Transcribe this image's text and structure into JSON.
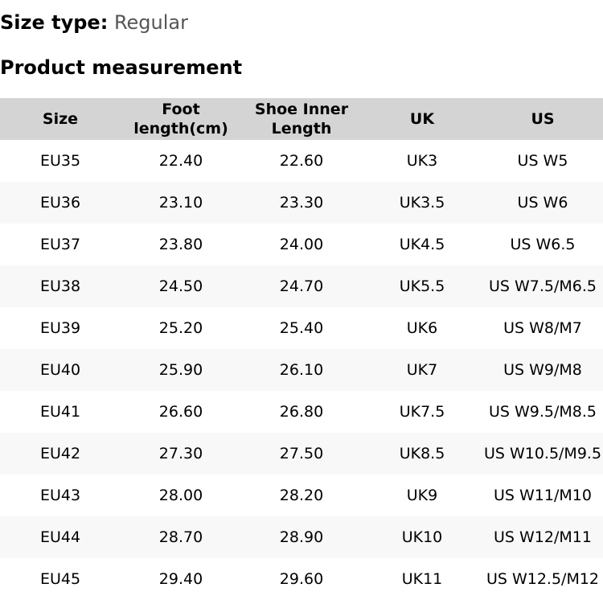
{
  "size_type": {
    "label": "Size type:",
    "value": "Regular"
  },
  "section_title": "Product measurement",
  "table": {
    "headers": [
      "Size",
      "Foot length(cm)",
      "Shoe Inner Length",
      "UK",
      "US"
    ],
    "rows": [
      [
        "EU35",
        "22.40",
        "22.60",
        "UK3",
        "US W5"
      ],
      [
        "EU36",
        "23.10",
        "23.30",
        "UK3.5",
        "US W6"
      ],
      [
        "EU37",
        "23.80",
        "24.00",
        "UK4.5",
        "US W6.5"
      ],
      [
        "EU38",
        "24.50",
        "24.70",
        "UK5.5",
        "US W7.5/M6.5"
      ],
      [
        "EU39",
        "25.20",
        "25.40",
        "UK6",
        "US W8/M7"
      ],
      [
        "EU40",
        "25.90",
        "26.10",
        "UK7",
        "US W9/M8"
      ],
      [
        "EU41",
        "26.60",
        "26.80",
        "UK7.5",
        "US W9.5/M8.5"
      ],
      [
        "EU42",
        "27.30",
        "27.50",
        "UK8.5",
        "US W10.5/M9.5"
      ],
      [
        "EU43",
        "28.00",
        "28.20",
        "UK9",
        "US W11/M10"
      ],
      [
        "EU44",
        "28.70",
        "28.90",
        "UK10",
        "US W12/M11"
      ],
      [
        "EU45",
        "29.40",
        "29.60",
        "UK11",
        "US W12.5/M12"
      ]
    ]
  },
  "colors": {
    "header_bg": "#d4d4d4",
    "alt_row_bg": "#f8f8f8",
    "value_text": "#555555"
  }
}
